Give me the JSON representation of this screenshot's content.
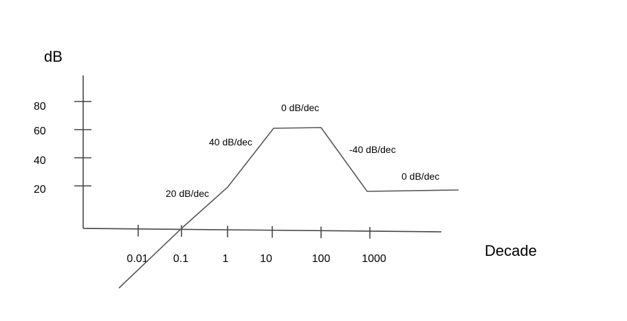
{
  "chart_data": {
    "type": "line",
    "title": "",
    "xlabel": "Decade",
    "ylabel": "dB",
    "x_ticks": [
      "0.01",
      "0.1",
      "1",
      "10",
      "100",
      "1000"
    ],
    "y_ticks": [
      "20",
      "40",
      "60",
      "80"
    ],
    "series": [
      {
        "x": [
          0.01,
          0.1,
          1,
          10,
          100,
          1000,
          10000
        ],
        "y": [
          -20,
          0,
          20,
          60,
          60,
          20,
          20
        ]
      }
    ],
    "annotations": [
      {
        "text": "20 dB/dec",
        "segment": 0
      },
      {
        "text": "40 dB/dec",
        "segment": 1
      },
      {
        "text": "0 dB/dec",
        "segment": 2
      },
      {
        "text": "-40 dB/dec",
        "segment": 3
      },
      {
        "text": "0 dB/dec",
        "segment": 4
      }
    ]
  }
}
